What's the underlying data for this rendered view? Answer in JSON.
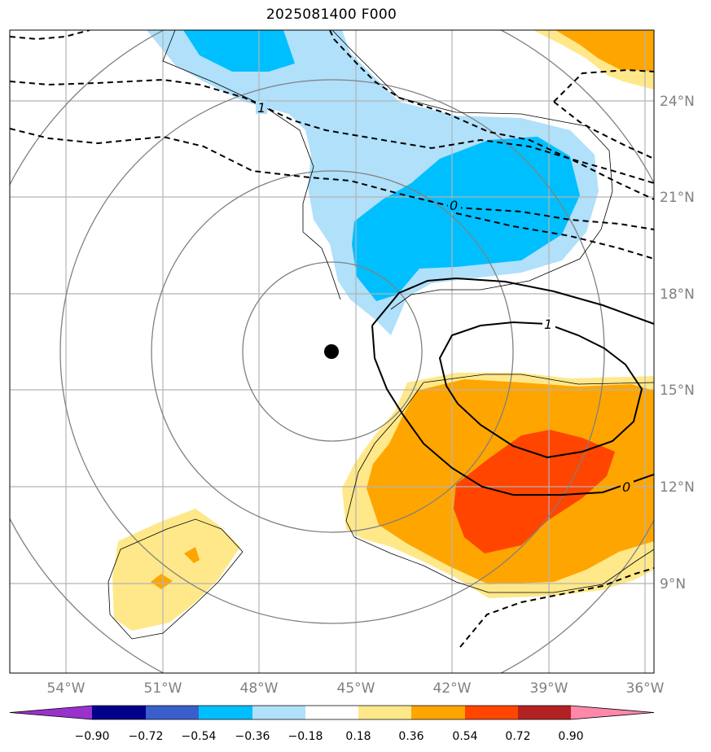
{
  "title": "2025081400 F000",
  "axes": {
    "lon_ticks": [
      "54°W",
      "51°W",
      "48°W",
      "45°W",
      "42°W",
      "39°W",
      "36°W"
    ],
    "lat_ticks": [
      "24°N",
      "21°N",
      "18°N",
      "15°N",
      "12°N",
      "9°N"
    ]
  },
  "colorbar": {
    "labels": [
      "−0.90",
      "−0.72",
      "−0.54",
      "−0.36",
      "−0.18",
      "0.18",
      "0.36",
      "0.54",
      "0.72",
      "0.90"
    ],
    "colors": [
      "#9932cc",
      "#00008b",
      "#3a5fcd",
      "#00bfff",
      "#b0e0fa",
      "#ffffff",
      "#ffe88a",
      "#ffa500",
      "#ff4500",
      "#b22222",
      "#ff88aa"
    ]
  },
  "contour_labels": [
    "1",
    "0",
    "1",
    "0"
  ],
  "center_marker": {
    "lon": -45.8,
    "lat": 16.2
  }
}
